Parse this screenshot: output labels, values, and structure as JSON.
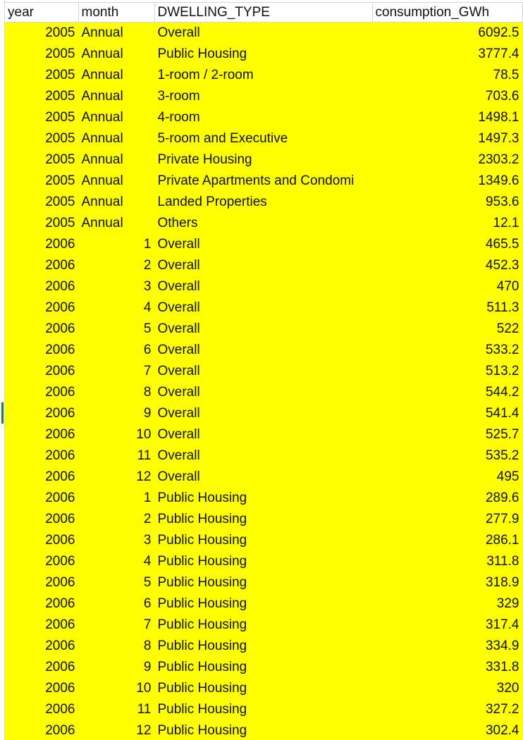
{
  "sheet": {
    "columns": [
      "year",
      "month",
      "DWELLING_TYPE",
      "consumption_GWh"
    ],
    "rows": [
      [
        "2005",
        "Annual",
        "Overall",
        "6092.5"
      ],
      [
        "2005",
        "Annual",
        "Public Housing",
        "3777.4"
      ],
      [
        "2005",
        "Annual",
        "1-room / 2-room",
        "78.5"
      ],
      [
        "2005",
        "Annual",
        "3-room",
        "703.6"
      ],
      [
        "2005",
        "Annual",
        "4-room",
        "1498.1"
      ],
      [
        "2005",
        "Annual",
        "5-room and Executive",
        "1497.3"
      ],
      [
        "2005",
        "Annual",
        "Private Housing",
        "2303.2"
      ],
      [
        "2005",
        "Annual",
        "Private Apartments and Condomi",
        "1349.6"
      ],
      [
        "2005",
        "Annual",
        "Landed Properties",
        "953.6"
      ],
      [
        "2005",
        "Annual",
        "Others",
        "12.1"
      ],
      [
        "2006",
        "1",
        "Overall",
        "465.5"
      ],
      [
        "2006",
        "2",
        "Overall",
        "452.3"
      ],
      [
        "2006",
        "3",
        "Overall",
        "470"
      ],
      [
        "2006",
        "4",
        "Overall",
        "511.3"
      ],
      [
        "2006",
        "5",
        "Overall",
        "522"
      ],
      [
        "2006",
        "6",
        "Overall",
        "533.2"
      ],
      [
        "2006",
        "7",
        "Overall",
        "513.2"
      ],
      [
        "2006",
        "8",
        "Overall",
        "544.2"
      ],
      [
        "2006",
        "9",
        "Overall",
        "541.4"
      ],
      [
        "2006",
        "10",
        "Overall",
        "525.7"
      ],
      [
        "2006",
        "11",
        "Overall",
        "535.2"
      ],
      [
        "2006",
        "12",
        "Overall",
        "495"
      ],
      [
        "2006",
        "1",
        "Public Housing",
        "289.6"
      ],
      [
        "2006",
        "2",
        "Public Housing",
        "277.9"
      ],
      [
        "2006",
        "3",
        "Public Housing",
        "286.1"
      ],
      [
        "2006",
        "4",
        "Public Housing",
        "311.8"
      ],
      [
        "2006",
        "5",
        "Public Housing",
        "318.9"
      ],
      [
        "2006",
        "6",
        "Public Housing",
        "329"
      ],
      [
        "2006",
        "7",
        "Public Housing",
        "317.4"
      ],
      [
        "2006",
        "8",
        "Public Housing",
        "334.9"
      ],
      [
        "2006",
        "9",
        "Public Housing",
        "331.8"
      ],
      [
        "2006",
        "10",
        "Public Housing",
        "320"
      ],
      [
        "2006",
        "11",
        "Public Housing",
        "327.2"
      ],
      [
        "2006",
        "12",
        "Public Housing",
        "302.4"
      ]
    ],
    "colors": {
      "highlight": "#ffff00",
      "grid": "#d4d4d4",
      "selection_marker": "#1e7b34"
    }
  }
}
